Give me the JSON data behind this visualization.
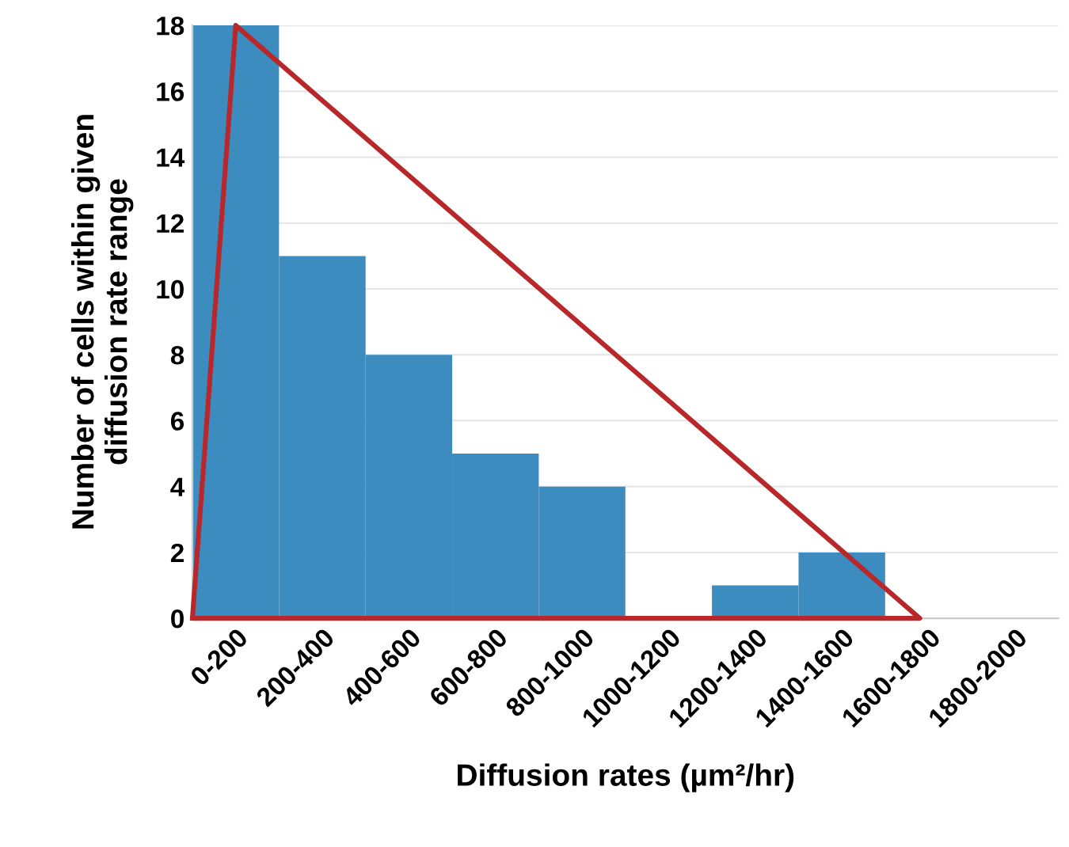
{
  "chart_data": {
    "type": "bar",
    "xlabel": "Diffusion rates (µm²/hr)",
    "ylabel": "Number of cells within given\ndiffusion rate range",
    "ylim": [
      0,
      18
    ],
    "yticks": [
      0,
      2,
      4,
      6,
      8,
      10,
      12,
      14,
      16,
      18
    ],
    "categories": [
      "0-200",
      "200-400",
      "400-600",
      "600-800",
      "800-1000",
      "1000-1200",
      "1200-1400",
      "1400-1600",
      "1600-1800",
      "1800-2000"
    ],
    "grid": "y",
    "color": "#3c8cc0",
    "values": [
      18,
      11,
      8,
      5,
      4,
      0,
      1,
      2,
      0,
      0
    ]
  }
}
